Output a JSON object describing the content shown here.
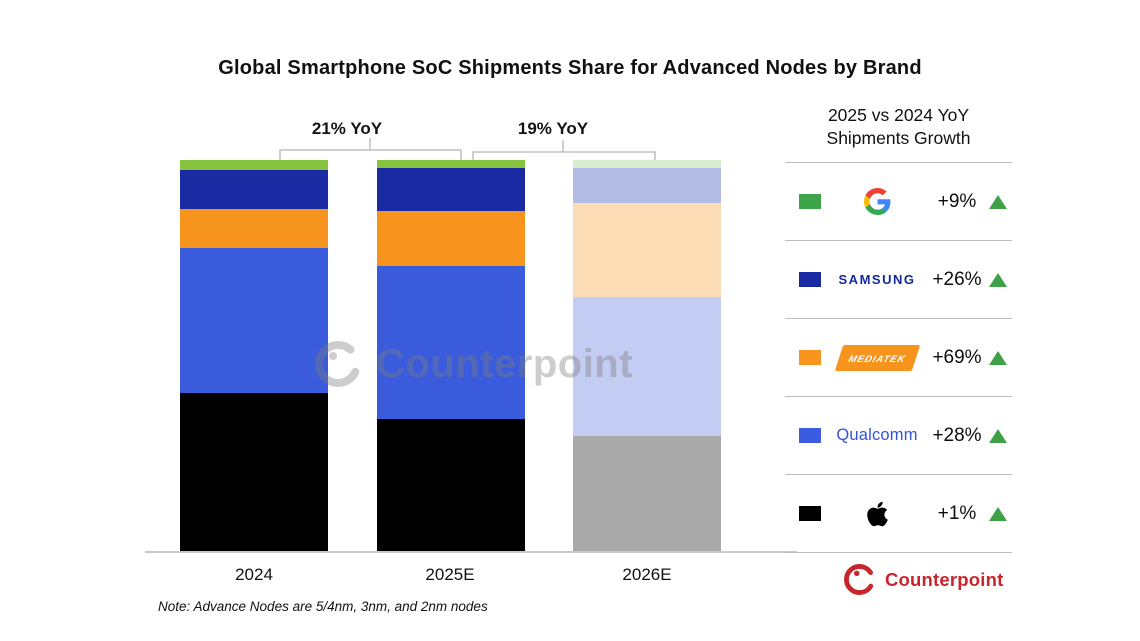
{
  "title": "Global Smartphone SoC Shipments Share for Advanced Nodes by Brand",
  "note": "Note: Advance Nodes are 5/4nm, 3nm, and 2nm nodes",
  "watermark_text": "Counterpoint",
  "footer_logo_text": "Counterpoint",
  "colors": {
    "triangle_green": "#3fa047",
    "counterpoint_red": "#c9252d",
    "samsung_navy": "#1428a0",
    "qualcomm_blue": "#3253dc",
    "mediatek_orange": "#f7941e",
    "bracket_gray": "#bfbfbf",
    "baseline_gray": "#c9c9c9"
  },
  "legend": {
    "title_line1": "2025 vs 2024 YoY",
    "title_line2": "Shipments Growth",
    "rows": [
      {
        "brand": "Google",
        "growth": "+9%",
        "swatch": "#3ea449",
        "direction": "up"
      },
      {
        "brand": "Samsung",
        "growth": "+26%",
        "swatch": "#1a2aa3",
        "direction": "up"
      },
      {
        "brand": "MediaTek",
        "growth": "+69%",
        "swatch": "#f7941e",
        "direction": "up"
      },
      {
        "brand": "Qualcomm",
        "growth": "+28%",
        "swatch": "#3b5ce0",
        "direction": "up"
      },
      {
        "brand": "Apple",
        "growth": "+1%",
        "swatch": "#000000",
        "direction": "up"
      }
    ],
    "mediatek_wordmark": "MEDIATEK",
    "samsung_wordmark": "SAMSUNG",
    "qualcomm_wordmark": "Qualcomm"
  },
  "chart_data": {
    "type": "bar",
    "stacked": true,
    "unit": "percent share of shipments (100% stacked)",
    "title": "Global Smartphone SoC Shipments Share for Advanced Nodes by Brand",
    "categories": [
      "2024",
      "2025E",
      "2026E"
    ],
    "series": [
      {
        "name": "Apple",
        "values": [
          40.5,
          34.0,
          29.5
        ],
        "colors": [
          "#000000",
          "#000000",
          "#a9a9a9"
        ]
      },
      {
        "name": "Qualcomm",
        "values": [
          37.0,
          39.0,
          35.5
        ],
        "colors": [
          "#3a5bdc",
          "#3a5bdc",
          "#c3ccf2"
        ]
      },
      {
        "name": "MediaTek",
        "values": [
          10.0,
          14.0,
          24.0
        ],
        "colors": [
          "#f7941e",
          "#f7941e",
          "#fcdcb4"
        ]
      },
      {
        "name": "Samsung",
        "values": [
          10.0,
          11.0,
          9.0
        ],
        "colors": [
          "#1a2aa3",
          "#1a2aa3",
          "#b3bce4"
        ]
      },
      {
        "name": "Google",
        "values": [
          2.5,
          2.0,
          2.0
        ],
        "colors": [
          "#86c440",
          "#86c440",
          "#d9edce"
        ]
      }
    ],
    "growth_annotations": [
      {
        "between": [
          "2024",
          "2025E"
        ],
        "label": "21% YoY"
      },
      {
        "between": [
          "2025E",
          "2026E"
        ],
        "label": "19% YoY"
      }
    ],
    "legend_position": "right",
    "grid": false,
    "note": "2026E bar rendered in faded colors (estimate)"
  }
}
